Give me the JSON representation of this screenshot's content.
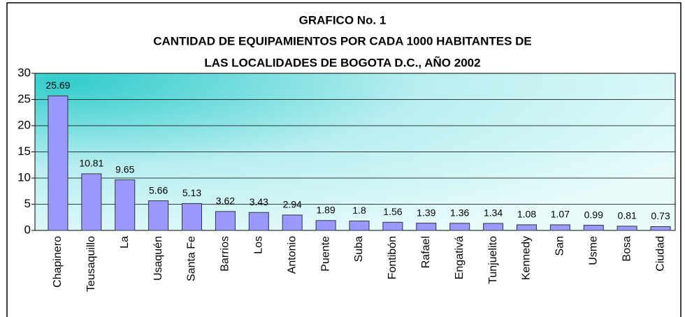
{
  "chart_data": {
    "type": "bar",
    "title": [
      "GRAFICO No. 1",
      "CANTIDAD DE EQUIPAMIENTOS POR CADA 1000 HABITANTES DE",
      "LAS LOCALIDADES DE BOGOTA D.C., AÑO 2002"
    ],
    "categories": [
      "Chapinero",
      "Teusaquillo",
      "La",
      "Usaquén",
      "Santa Fe",
      "Barrios",
      "Los",
      "Antonio",
      "Puente",
      "Suba",
      "Fontibón",
      "Rafael",
      "Engativá",
      "Tunjuelito",
      "Kennedy",
      "San",
      "Usme",
      "Bosa",
      "Ciudad"
    ],
    "values": [
      25.69,
      10.81,
      9.65,
      5.66,
      5.13,
      3.62,
      3.43,
      2.94,
      1.89,
      1.8,
      1.56,
      1.39,
      1.36,
      1.34,
      1.08,
      1.07,
      0.99,
      0.81,
      0.73
    ],
    "color": "#9999ff",
    "ylim": [
      0,
      30
    ],
    "yticks": [
      0,
      5,
      10,
      15,
      20,
      25,
      30
    ],
    "grid": true
  }
}
